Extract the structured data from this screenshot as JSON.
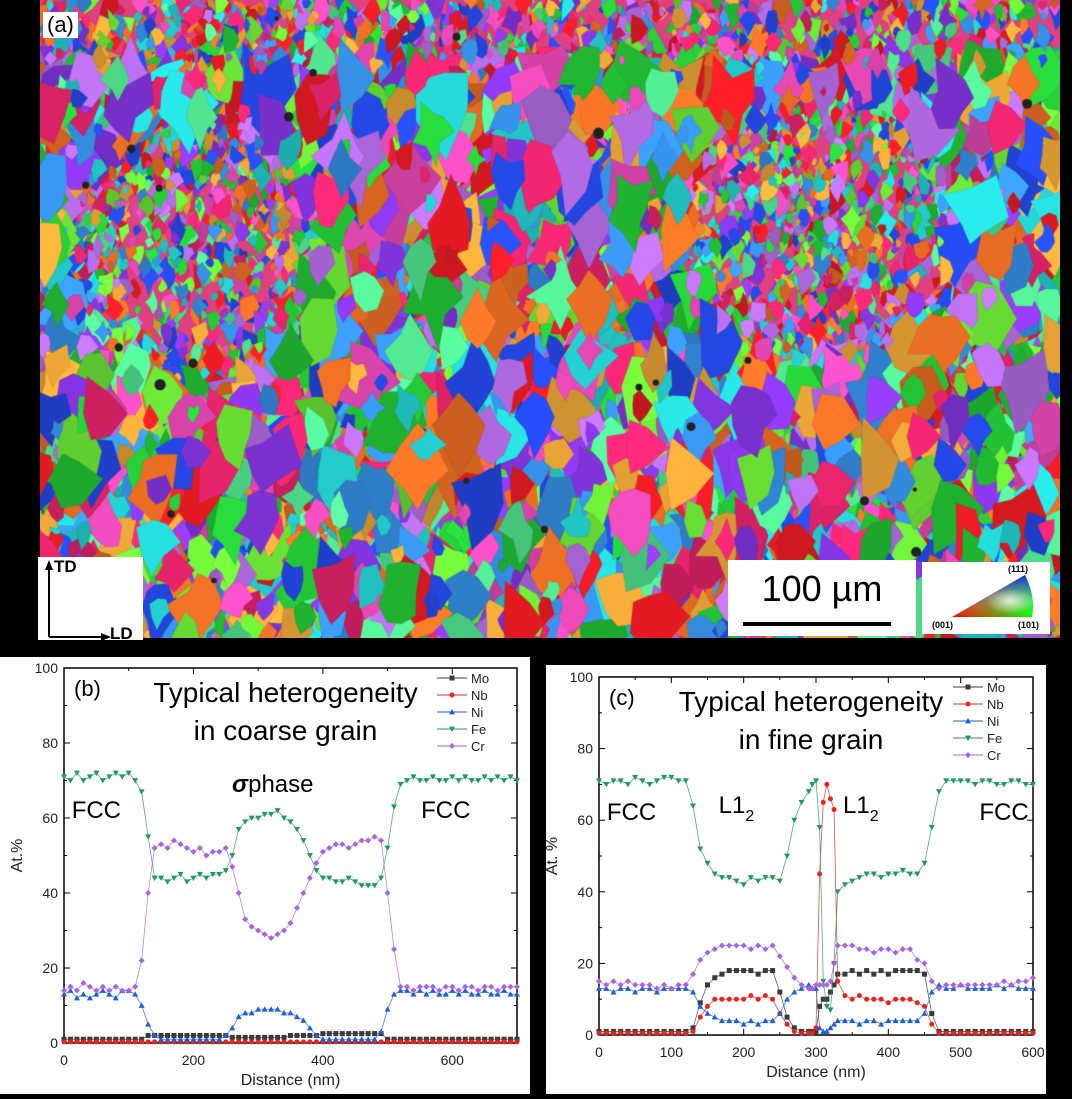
{
  "panel_a": {
    "label": "(a)",
    "scale_bar": "100 µm",
    "axes": {
      "vertical": "TD",
      "horizontal": "LD"
    },
    "ipf_legend": {
      "top": "(111)",
      "left": "(001)",
      "right": "(101)"
    }
  },
  "chart_data": [
    {
      "type": "line",
      "panel_label": "(b)",
      "title_lines": [
        "Typical heterogeneity",
        "in coarse grain"
      ],
      "xlabel": "Distance (nm)",
      "ylabel": "At.%",
      "xlim": [
        0,
        700
      ],
      "ylim": [
        0,
        100
      ],
      "x_ticks": [
        0,
        200,
        400,
        600
      ],
      "y_ticks": [
        0,
        20,
        40,
        60,
        80,
        100
      ],
      "legend_position": "top-right",
      "annotations": [
        {
          "text": "FCC",
          "x": 50,
          "y": 60
        },
        {
          "text": "σ",
          "bold": true,
          "x": 272,
          "y": 67
        },
        {
          "text": "phase",
          "x": 335,
          "y": 67
        },
        {
          "text": "FCC",
          "x": 590,
          "y": 60
        }
      ],
      "x": [
        0,
        10,
        20,
        30,
        40,
        50,
        60,
        70,
        80,
        90,
        100,
        110,
        120,
        130,
        140,
        150,
        160,
        170,
        180,
        190,
        200,
        210,
        220,
        230,
        240,
        250,
        260,
        270,
        280,
        290,
        300,
        310,
        320,
        330,
        340,
        350,
        360,
        370,
        380,
        390,
        400,
        410,
        420,
        430,
        440,
        450,
        460,
        470,
        480,
        490,
        500,
        510,
        520,
        530,
        540,
        550,
        560,
        570,
        580,
        590,
        600,
        610,
        620,
        630,
        640,
        650,
        660,
        670,
        680,
        690,
        700
      ],
      "series": [
        {
          "name": "Mo",
          "color": "#3a3a3a",
          "marker": "square",
          "values": [
            1,
            1,
            1,
            1,
            1,
            1,
            1,
            1,
            1,
            1,
            1,
            1,
            1,
            2,
            2,
            2,
            2,
            2,
            2,
            2,
            2,
            2,
            2,
            2,
            2,
            2,
            1.5,
            1.5,
            1.5,
            1.5,
            1.5,
            1.5,
            1.5,
            1.5,
            1.5,
            2,
            2,
            2,
            2,
            2,
            2.5,
            2.5,
            2.5,
            2.5,
            2.5,
            2.5,
            2.5,
            2.5,
            2.5,
            2.5,
            1,
            1,
            1,
            1,
            1,
            1,
            1,
            1,
            1,
            1,
            1,
            1,
            1,
            1,
            1,
            1,
            1,
            1,
            1,
            1,
            1
          ]
        },
        {
          "name": "Nb",
          "color": "#e8221c",
          "marker": "circle",
          "values": [
            0.3,
            0.3,
            0.3,
            0.3,
            0.3,
            0.3,
            0.3,
            0.3,
            0.3,
            0.3,
            0.3,
            0.3,
            0.3,
            0.3,
            0.3,
            0.3,
            0.3,
            0.3,
            0.3,
            0.3,
            0.3,
            0.3,
            0.3,
            0.3,
            0.3,
            0.3,
            0.3,
            0.3,
            0.3,
            0.3,
            0.3,
            0.3,
            0.3,
            0.3,
            0.3,
            0.3,
            0.3,
            0.3,
            0.3,
            0.3,
            0.3,
            0.3,
            0.3,
            0.3,
            0.3,
            0.3,
            0.3,
            0.3,
            0.3,
            0.3,
            0.3,
            0.3,
            0.3,
            0.3,
            0.3,
            0.3,
            0.3,
            0.3,
            0.3,
            0.3,
            0.3,
            0.3,
            0.3,
            0.3,
            0.3,
            0.3,
            0.3,
            0.3,
            0.3,
            0.3,
            0.3
          ]
        },
        {
          "name": "Ni",
          "color": "#1e5fd8",
          "marker": "triangle-up",
          "values": [
            13,
            14,
            12,
            13,
            12,
            13,
            14,
            13,
            12,
            14,
            14,
            13,
            10,
            5,
            2,
            1,
            1,
            1,
            1,
            1,
            1,
            1,
            1,
            1,
            1,
            2,
            4,
            7,
            8,
            8,
            9,
            9,
            9,
            9,
            8,
            8,
            7,
            6,
            4,
            2,
            1,
            1,
            1,
            1,
            1,
            1,
            1,
            1,
            1,
            3,
            9,
            13,
            14,
            14,
            13,
            14,
            13,
            14,
            13,
            13,
            14,
            13,
            14,
            13,
            13,
            14,
            13,
            13,
            14,
            13,
            13
          ]
        },
        {
          "name": "Fe",
          "color": "#1f9a5c",
          "marker": "triangle-down",
          "values": [
            71,
            70,
            72,
            70,
            71,
            72,
            70,
            71,
            72,
            71,
            72,
            70,
            67,
            55,
            44,
            44,
            43,
            44,
            45,
            43,
            44,
            45,
            44,
            45,
            45,
            46,
            50,
            57,
            59,
            60,
            60,
            61,
            61,
            62,
            60,
            59,
            57,
            54,
            50,
            46,
            44,
            44,
            43,
            43,
            44,
            43,
            42,
            42,
            42,
            44,
            52,
            63,
            69,
            70,
            71,
            70,
            70,
            71,
            70,
            70,
            71,
            70,
            71,
            70,
            70,
            71,
            70,
            71,
            70,
            71,
            70
          ]
        },
        {
          "name": "Cr",
          "color": "#a864e0",
          "marker": "diamond",
          "values": [
            14,
            15,
            14,
            16,
            15,
            14,
            15,
            14,
            15,
            14,
            14,
            15,
            22,
            40,
            52,
            53,
            52,
            54,
            53,
            52,
            51,
            52,
            50,
            51,
            51,
            52,
            47,
            40,
            33,
            31,
            30,
            29,
            28,
            29,
            30,
            32,
            36,
            40,
            44,
            48,
            51,
            52,
            53,
            53,
            52,
            53,
            54,
            54,
            55,
            54,
            40,
            25,
            15,
            15,
            14,
            15,
            15,
            15,
            14,
            15,
            15,
            14,
            15,
            15,
            14,
            15,
            15,
            14,
            15,
            15,
            15
          ]
        }
      ]
    },
    {
      "type": "line",
      "panel_label": "(c)",
      "title_lines": [
        "Typical heterogeneity",
        "in fine grain"
      ],
      "xlabel": "Distance (nm)",
      "ylabel": "At. %",
      "xlim": [
        0,
        600
      ],
      "ylim": [
        0,
        100
      ],
      "x_ticks": [
        0,
        100,
        200,
        300,
        400,
        500,
        600
      ],
      "y_ticks": [
        0,
        20,
        40,
        60,
        80,
        100
      ],
      "legend_position": "top-right",
      "annotations": [
        {
          "text": "FCC",
          "x": 45,
          "y": 60
        },
        {
          "text": "L1",
          "x": 190,
          "y": 62,
          "sub": "2"
        },
        {
          "text": "L1",
          "x": 362,
          "y": 62,
          "sub": "2"
        },
        {
          "text": "FCC",
          "x": 560,
          "y": 60
        }
      ],
      "x": [
        0,
        10,
        20,
        30,
        40,
        50,
        60,
        70,
        80,
        90,
        100,
        110,
        120,
        130,
        140,
        150,
        160,
        170,
        180,
        190,
        200,
        210,
        220,
        230,
        240,
        250,
        260,
        270,
        280,
        290,
        295,
        300,
        305,
        310,
        315,
        320,
        325,
        330,
        340,
        350,
        360,
        370,
        380,
        390,
        400,
        410,
        420,
        430,
        440,
        450,
        460,
        470,
        480,
        490,
        500,
        510,
        520,
        530,
        540,
        550,
        560,
        570,
        580,
        590,
        600
      ],
      "series": [
        {
          "name": "Mo",
          "color": "#3a3a3a",
          "marker": "square",
          "values": [
            1,
            1,
            1,
            1,
            1,
            1,
            1,
            1,
            1,
            1,
            1,
            1,
            1,
            2,
            9,
            14,
            16,
            17,
            18,
            18,
            18,
            18,
            17,
            18,
            18,
            12,
            5,
            2,
            1,
            1,
            1,
            1,
            8,
            10,
            10,
            12,
            14,
            17,
            17,
            18,
            17,
            18,
            17,
            18,
            17,
            18,
            18,
            18,
            18,
            17,
            6,
            1,
            1,
            1,
            1,
            1,
            1,
            1,
            1,
            1,
            1,
            1,
            1,
            1,
            1
          ]
        },
        {
          "name": "Nb",
          "color": "#e8221c",
          "marker": "circle",
          "values": [
            0.5,
            0.5,
            0.5,
            0.5,
            0.5,
            0.5,
            0.5,
            0.5,
            0.5,
            0.5,
            0.5,
            0.5,
            0.5,
            1,
            5,
            8,
            10,
            10,
            10,
            10,
            10,
            11,
            10,
            11,
            10,
            6,
            3,
            1,
            0.5,
            0.5,
            0.5,
            2,
            45,
            65,
            70,
            66,
            63,
            15,
            11,
            10,
            11,
            10,
            10,
            10,
            9,
            10,
            10,
            10,
            9,
            8,
            3,
            0.5,
            0.5,
            0.5,
            0.5,
            0.5,
            0.5,
            0.5,
            0.5,
            0.5,
            0.5,
            0.5,
            0.5,
            0.5,
            0.5
          ]
        },
        {
          "name": "Ni",
          "color": "#1e5fd8",
          "marker": "triangle-up",
          "values": [
            13,
            13,
            12,
            13,
            13,
            12,
            13,
            13,
            12,
            13,
            13,
            13,
            13,
            12,
            8,
            6,
            5,
            4,
            4,
            4,
            3,
            4,
            3,
            4,
            4,
            6,
            10,
            12,
            13,
            14,
            13,
            13,
            2,
            1,
            1,
            2,
            3,
            4,
            4,
            4,
            3,
            4,
            4,
            3,
            4,
            4,
            4,
            4,
            4,
            6,
            12,
            14,
            13,
            13,
            14,
            13,
            13,
            13,
            13,
            14,
            13,
            14,
            13,
            13,
            13
          ]
        },
        {
          "name": "Fe",
          "color": "#1f9a5c",
          "marker": "triangle-down",
          "values": [
            71,
            70,
            71,
            71,
            70,
            72,
            71,
            70,
            71,
            72,
            72,
            71,
            71,
            64,
            52,
            48,
            45,
            44,
            44,
            43,
            42,
            44,
            43,
            44,
            44,
            43,
            50,
            60,
            65,
            68,
            70,
            71,
            58,
            15,
            8,
            7,
            20,
            40,
            42,
            43,
            44,
            45,
            45,
            44,
            45,
            45,
            46,
            45,
            45,
            48,
            58,
            68,
            71,
            71,
            71,
            71,
            70,
            71,
            71,
            70,
            70,
            71,
            71,
            70,
            70
          ]
        },
        {
          "name": "Cr",
          "color": "#a864e0",
          "marker": "diamond",
          "values": [
            15,
            14,
            15,
            14,
            15,
            14,
            14,
            14,
            13,
            14,
            13,
            14,
            14,
            17,
            21,
            23,
            24,
            25,
            25,
            25,
            25,
            24,
            25,
            24,
            25,
            22,
            19,
            16,
            14,
            13,
            13,
            14,
            14,
            14,
            14,
            15,
            20,
            25,
            25,
            25,
            24,
            24,
            23,
            24,
            24,
            23,
            24,
            24,
            21,
            20,
            15,
            13,
            14,
            14,
            14,
            14,
            14,
            14,
            14,
            14,
            15,
            14,
            15,
            15,
            16
          ]
        }
      ]
    }
  ]
}
